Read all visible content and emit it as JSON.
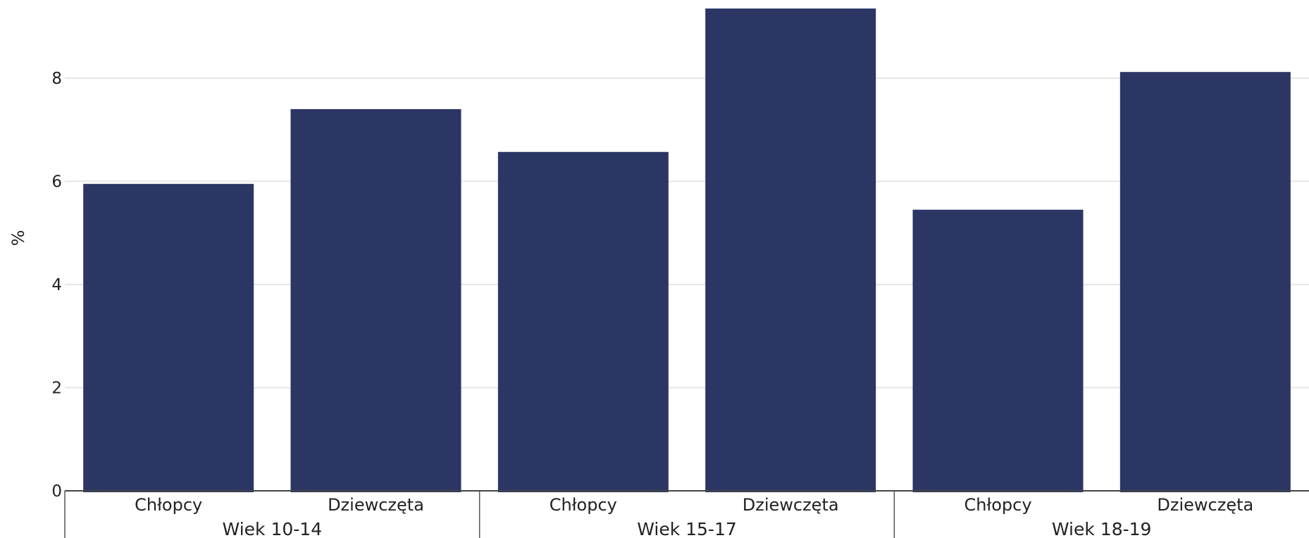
{
  "chart_data": {
    "type": "bar",
    "title": "",
    "xlabel": "",
    "ylabel": "%",
    "ylim": [
      0,
      9.5
    ],
    "yticks": [
      0,
      2,
      4,
      6,
      8
    ],
    "grid": true,
    "bar_color": "#2b3664",
    "groups": [
      {
        "label": "Wiek 10-14",
        "categories": [
          "Chłopcy",
          "Dziewczęta"
        ],
        "values": [
          5.95,
          7.4
        ]
      },
      {
        "label": "Wiek 15-17",
        "categories": [
          "Chłopcy",
          "Dziewczęta"
        ],
        "values": [
          6.57,
          9.35
        ]
      },
      {
        "label": "Wiek 18-19",
        "categories": [
          "Chłopcy",
          "Dziewczęta"
        ],
        "values": [
          5.45,
          8.12
        ]
      }
    ]
  }
}
